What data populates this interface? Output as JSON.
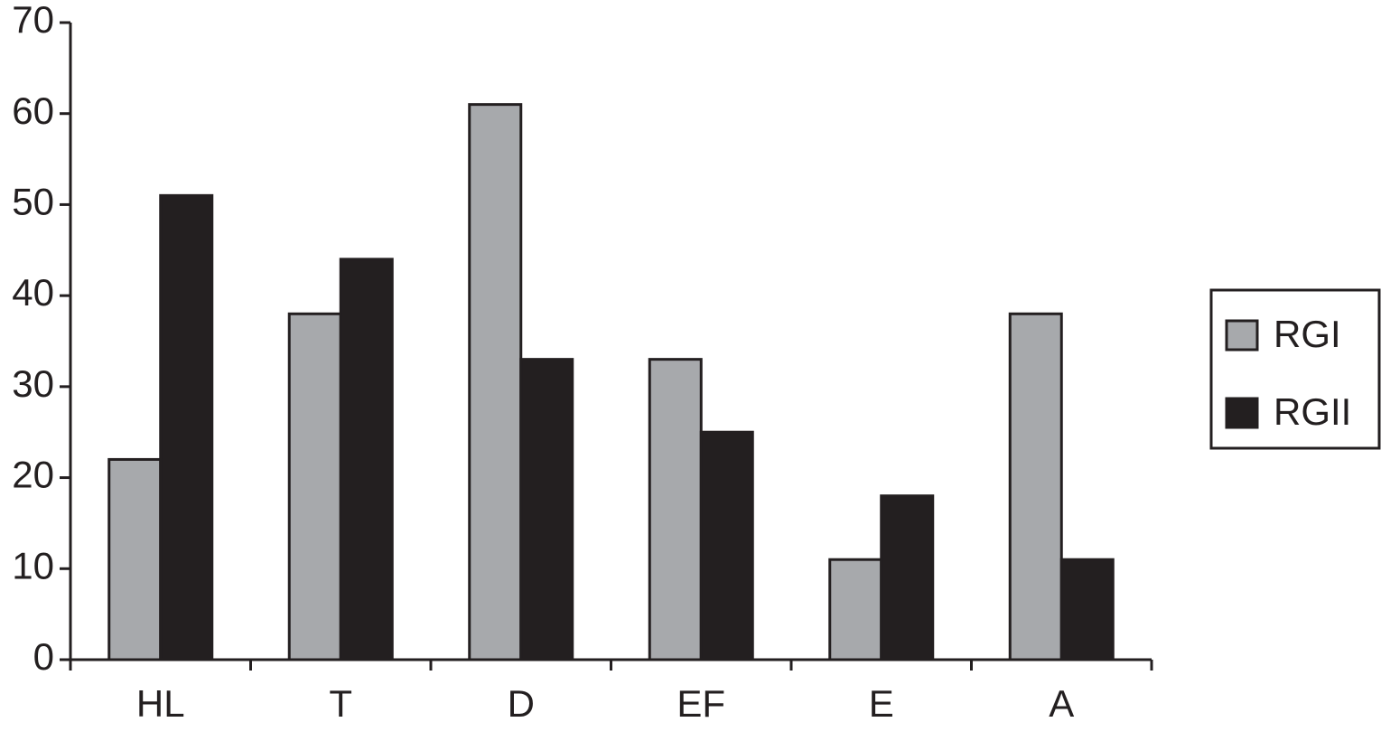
{
  "chart_data": {
    "type": "bar",
    "categories": [
      "HL",
      "T",
      "D",
      "EF",
      "E",
      "A"
    ],
    "series": [
      {
        "name": "RGI",
        "color": "#a7a9ac",
        "values": [
          22,
          38,
          61,
          33,
          11,
          38
        ]
      },
      {
        "name": "RGII",
        "color": "#231f20",
        "values": [
          51,
          44,
          33,
          25,
          18,
          11
        ]
      }
    ],
    "ylim": [
      0,
      70
    ],
    "yticks": [
      0,
      10,
      20,
      30,
      40,
      50,
      60,
      70
    ]
  }
}
